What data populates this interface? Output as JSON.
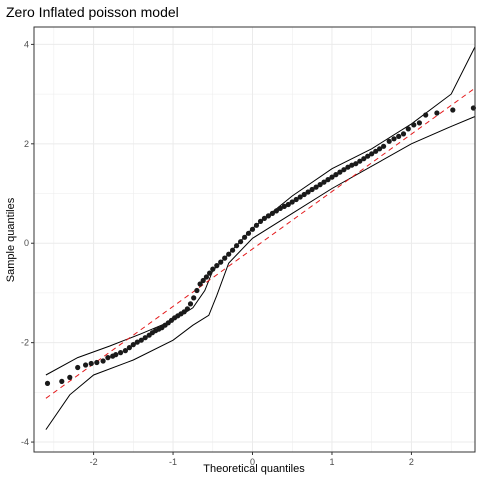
{
  "chart_data": {
    "type": "scatter",
    "title": "Zero Inflated poisson model",
    "xlabel": "Theoretical quantiles",
    "ylabel": "Sample quantiles",
    "xlim": [
      -2.75,
      2.8
    ],
    "ylim": [
      -4.2,
      4.35
    ],
    "x_ticks": [
      -2,
      -1,
      0,
      1,
      2
    ],
    "y_ticks": [
      -4,
      -2,
      0,
      2,
      4
    ],
    "grid": true,
    "colors": {
      "points": "#1a1a1a",
      "reference_line": "#e41a1c",
      "band": "#000000",
      "grid": "#ebebeb"
    },
    "points": [
      [
        -2.58,
        -2.82
      ],
      [
        -2.4,
        -2.78
      ],
      [
        -2.3,
        -2.7
      ],
      [
        -2.2,
        -2.5
      ],
      [
        -2.1,
        -2.45
      ],
      [
        -2.03,
        -2.42
      ],
      [
        -1.96,
        -2.4
      ],
      [
        -1.88,
        -2.37
      ],
      [
        -1.82,
        -2.3
      ],
      [
        -1.76,
        -2.27
      ],
      [
        -1.72,
        -2.24
      ],
      [
        -1.66,
        -2.2
      ],
      [
        -1.6,
        -2.16
      ],
      [
        -1.55,
        -2.1
      ],
      [
        -1.5,
        -2.04
      ],
      [
        -1.45,
        -1.99
      ],
      [
        -1.4,
        -1.95
      ],
      [
        -1.35,
        -1.9
      ],
      [
        -1.3,
        -1.85
      ],
      [
        -1.26,
        -1.8
      ],
      [
        -1.22,
        -1.76
      ],
      [
        -1.18,
        -1.73
      ],
      [
        -1.14,
        -1.7
      ],
      [
        -1.1,
        -1.65
      ],
      [
        -1.06,
        -1.6
      ],
      [
        -1.02,
        -1.55
      ],
      [
        -0.98,
        -1.5
      ],
      [
        -0.94,
        -1.46
      ],
      [
        -0.9,
        -1.42
      ],
      [
        -0.86,
        -1.38
      ],
      [
        -0.82,
        -1.32
      ],
      [
        -0.78,
        -1.22
      ],
      [
        -0.74,
        -1.1
      ],
      [
        -0.7,
        -0.95
      ],
      [
        -0.66,
        -0.82
      ],
      [
        -0.62,
        -0.75
      ],
      [
        -0.58,
        -0.68
      ],
      [
        -0.54,
        -0.6
      ],
      [
        -0.5,
        -0.52
      ],
      [
        -0.45,
        -0.45
      ],
      [
        -0.4,
        -0.38
      ],
      [
        -0.35,
        -0.3
      ],
      [
        -0.3,
        -0.22
      ],
      [
        -0.25,
        -0.14
      ],
      [
        -0.2,
        -0.05
      ],
      [
        -0.15,
        0.03
      ],
      [
        -0.1,
        0.12
      ],
      [
        -0.05,
        0.2
      ],
      [
        0.0,
        0.28
      ],
      [
        0.05,
        0.36
      ],
      [
        0.1,
        0.44
      ],
      [
        0.15,
        0.5
      ],
      [
        0.2,
        0.55
      ],
      [
        0.25,
        0.6
      ],
      [
        0.3,
        0.65
      ],
      [
        0.35,
        0.7
      ],
      [
        0.4,
        0.74
      ],
      [
        0.45,
        0.78
      ],
      [
        0.5,
        0.83
      ],
      [
        0.55,
        0.88
      ],
      [
        0.6,
        0.93
      ],
      [
        0.65,
        0.98
      ],
      [
        0.7,
        1.03
      ],
      [
        0.75,
        1.08
      ],
      [
        0.8,
        1.13
      ],
      [
        0.85,
        1.18
      ],
      [
        0.9,
        1.23
      ],
      [
        0.95,
        1.28
      ],
      [
        1.0,
        1.33
      ],
      [
        1.05,
        1.38
      ],
      [
        1.1,
        1.43
      ],
      [
        1.15,
        1.48
      ],
      [
        1.2,
        1.53
      ],
      [
        1.25,
        1.57
      ],
      [
        1.3,
        1.6
      ],
      [
        1.35,
        1.65
      ],
      [
        1.4,
        1.7
      ],
      [
        1.45,
        1.75
      ],
      [
        1.5,
        1.8
      ],
      [
        1.55,
        1.85
      ],
      [
        1.6,
        1.9
      ],
      [
        1.65,
        1.95
      ],
      [
        1.72,
        2.05
      ],
      [
        1.78,
        2.1
      ],
      [
        1.84,
        2.15
      ],
      [
        1.9,
        2.2
      ],
      [
        1.96,
        2.3
      ],
      [
        2.03,
        2.38
      ],
      [
        2.1,
        2.42
      ],
      [
        2.18,
        2.58
      ],
      [
        2.32,
        2.62
      ],
      [
        2.52,
        2.68
      ],
      [
        2.78,
        2.72
      ]
    ],
    "reference_line": {
      "x": [
        -2.6,
        2.8
      ],
      "y": [
        -3.12,
        3.12
      ]
    },
    "band_upper": [
      [
        -2.6,
        -2.65
      ],
      [
        -2.2,
        -2.3
      ],
      [
        -1.8,
        -2.07
      ],
      [
        -1.4,
        -1.82
      ],
      [
        -1.0,
        -1.55
      ],
      [
        -0.75,
        -1.3
      ],
      [
        -0.6,
        -0.95
      ],
      [
        -0.5,
        -0.55
      ],
      [
        -0.35,
        -0.3
      ],
      [
        0.0,
        0.3
      ],
      [
        0.5,
        0.95
      ],
      [
        1.0,
        1.5
      ],
      [
        1.5,
        1.9
      ],
      [
        2.0,
        2.4
      ],
      [
        2.5,
        3.0
      ],
      [
        2.8,
        3.95
      ]
    ],
    "band_lower": [
      [
        -2.6,
        -3.75
      ],
      [
        -2.3,
        -3.05
      ],
      [
        -2.0,
        -2.65
      ],
      [
        -1.5,
        -2.35
      ],
      [
        -1.0,
        -1.95
      ],
      [
        -0.75,
        -1.65
      ],
      [
        -0.55,
        -1.45
      ],
      [
        -0.45,
        -1.05
      ],
      [
        -0.3,
        -0.4
      ],
      [
        0.0,
        0.1
      ],
      [
        0.5,
        0.6
      ],
      [
        1.0,
        1.1
      ],
      [
        1.5,
        1.55
      ],
      [
        2.0,
        2.0
      ],
      [
        2.5,
        2.35
      ],
      [
        2.8,
        2.55
      ]
    ]
  }
}
